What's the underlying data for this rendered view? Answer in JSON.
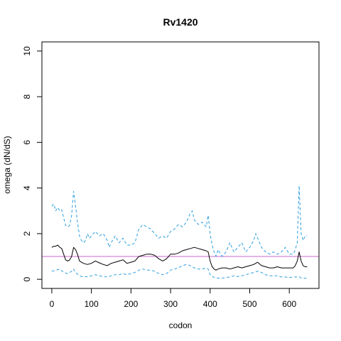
{
  "chart_data": {
    "type": "line",
    "title": "Rv1420",
    "xlabel": "codon",
    "ylabel": "omega (dN/dS)",
    "xlim": [
      -25,
      675
    ],
    "ylim": [
      -0.4,
      10.4
    ],
    "xticks": [
      0,
      100,
      200,
      300,
      400,
      500,
      600
    ],
    "yticks": [
      0,
      2,
      4,
      6,
      8,
      10
    ],
    "reference_line": {
      "y": 1,
      "color": "#cc66cc"
    },
    "colors": {
      "estimate": "#000000",
      "interval": "#2e9fe0"
    },
    "series": [
      {
        "role": "estimate",
        "style": "solid",
        "x": [
          0,
          5,
          10,
          15,
          20,
          25,
          30,
          35,
          40,
          45,
          50,
          55,
          60,
          65,
          70,
          80,
          90,
          100,
          110,
          120,
          130,
          140,
          150,
          160,
          170,
          180,
          190,
          200,
          210,
          220,
          230,
          240,
          250,
          260,
          270,
          280,
          290,
          300,
          310,
          320,
          330,
          340,
          350,
          360,
          370,
          380,
          390,
          395,
          400,
          405,
          410,
          415,
          420,
          430,
          440,
          450,
          460,
          470,
          480,
          490,
          500,
          510,
          520,
          530,
          540,
          550,
          560,
          570,
          580,
          590,
          600,
          610,
          615,
          620,
          625,
          630,
          635,
          640,
          645
        ],
        "y": [
          1.4,
          1.45,
          1.45,
          1.5,
          1.4,
          1.35,
          1.1,
          0.85,
          0.8,
          0.85,
          1.0,
          1.4,
          1.3,
          1.1,
          0.8,
          0.7,
          0.65,
          0.7,
          0.8,
          0.72,
          0.65,
          0.6,
          0.7,
          0.75,
          0.8,
          0.85,
          0.7,
          0.75,
          0.8,
          1.0,
          1.05,
          1.1,
          1.1,
          1.05,
          0.9,
          0.8,
          0.9,
          1.1,
          1.1,
          1.15,
          1.25,
          1.3,
          1.35,
          1.4,
          1.35,
          1.3,
          1.25,
          1.2,
          0.8,
          0.55,
          0.45,
          0.4,
          0.45,
          0.5,
          0.5,
          0.45,
          0.5,
          0.55,
          0.5,
          0.55,
          0.6,
          0.65,
          0.75,
          0.6,
          0.55,
          0.5,
          0.5,
          0.55,
          0.5,
          0.5,
          0.5,
          0.5,
          0.6,
          0.8,
          1.2,
          0.8,
          0.6,
          0.55,
          0.55
        ]
      },
      {
        "role": "upper-bound",
        "style": "dashed",
        "x": [
          0,
          5,
          10,
          15,
          20,
          25,
          30,
          35,
          40,
          45,
          50,
          55,
          60,
          65,
          70,
          75,
          80,
          85,
          90,
          95,
          100,
          110,
          120,
          130,
          140,
          145,
          150,
          160,
          170,
          180,
          190,
          200,
          210,
          220,
          230,
          240,
          250,
          260,
          270,
          280,
          290,
          300,
          310,
          320,
          330,
          340,
          350,
          355,
          360,
          370,
          380,
          390,
          395,
          400,
          405,
          410,
          415,
          420,
          430,
          440,
          450,
          460,
          470,
          480,
          490,
          500,
          510,
          515,
          520,
          530,
          540,
          550,
          560,
          570,
          580,
          590,
          600,
          610,
          615,
          620,
          625,
          630,
          635,
          640,
          645
        ],
        "y": [
          3.2,
          3.3,
          3.0,
          3.15,
          3.0,
          3.05,
          2.7,
          2.35,
          2.3,
          2.35,
          2.8,
          3.85,
          3.2,
          2.5,
          1.9,
          1.7,
          1.6,
          1.7,
          2.0,
          1.8,
          1.9,
          2.1,
          1.9,
          2.0,
          1.7,
          1.4,
          1.6,
          1.9,
          1.6,
          1.8,
          1.5,
          1.5,
          1.6,
          2.2,
          2.4,
          2.3,
          2.2,
          2.0,
          1.8,
          1.9,
          1.8,
          2.1,
          2.2,
          2.4,
          2.3,
          2.5,
          2.9,
          3.0,
          2.6,
          2.4,
          2.5,
          2.3,
          2.8,
          2.0,
          1.5,
          1.2,
          1.0,
          1.3,
          1.0,
          1.2,
          1.6,
          1.2,
          1.4,
          1.6,
          1.2,
          1.4,
          1.7,
          2.0,
          1.8,
          1.4,
          1.2,
          1.1,
          1.2,
          1.1,
          1.2,
          1.4,
          1.1,
          1.1,
          1.3,
          1.6,
          4.1,
          2.0,
          1.7,
          1.9,
          1.9
        ]
      },
      {
        "role": "lower-bound",
        "style": "dashed",
        "x": [
          0,
          10,
          20,
          30,
          40,
          50,
          55,
          60,
          70,
          80,
          90,
          100,
          110,
          120,
          130,
          140,
          150,
          160,
          170,
          180,
          190,
          200,
          210,
          220,
          230,
          240,
          250,
          260,
          270,
          280,
          290,
          300,
          310,
          320,
          330,
          340,
          350,
          360,
          370,
          380,
          390,
          395,
          400,
          410,
          420,
          430,
          440,
          450,
          460,
          470,
          480,
          490,
          500,
          510,
          520,
          530,
          540,
          550,
          560,
          570,
          580,
          590,
          600,
          610,
          620,
          625,
          630,
          640,
          645
        ],
        "y": [
          0.35,
          0.4,
          0.45,
          0.3,
          0.25,
          0.35,
          0.45,
          0.3,
          0.15,
          0.1,
          0.12,
          0.15,
          0.2,
          0.15,
          0.12,
          0.1,
          0.15,
          0.2,
          0.2,
          0.25,
          0.2,
          0.25,
          0.3,
          0.4,
          0.45,
          0.4,
          0.4,
          0.35,
          0.25,
          0.2,
          0.25,
          0.4,
          0.45,
          0.5,
          0.6,
          0.65,
          0.6,
          0.5,
          0.45,
          0.45,
          0.5,
          0.45,
          0.2,
          0.08,
          0.05,
          0.05,
          0.08,
          0.1,
          0.15,
          0.12,
          0.15,
          0.2,
          0.25,
          0.3,
          0.35,
          0.3,
          0.2,
          0.15,
          0.15,
          0.15,
          0.1,
          0.1,
          0.08,
          0.1,
          0.1,
          0.12,
          0.05,
          0.05,
          0.05
        ]
      }
    ]
  }
}
